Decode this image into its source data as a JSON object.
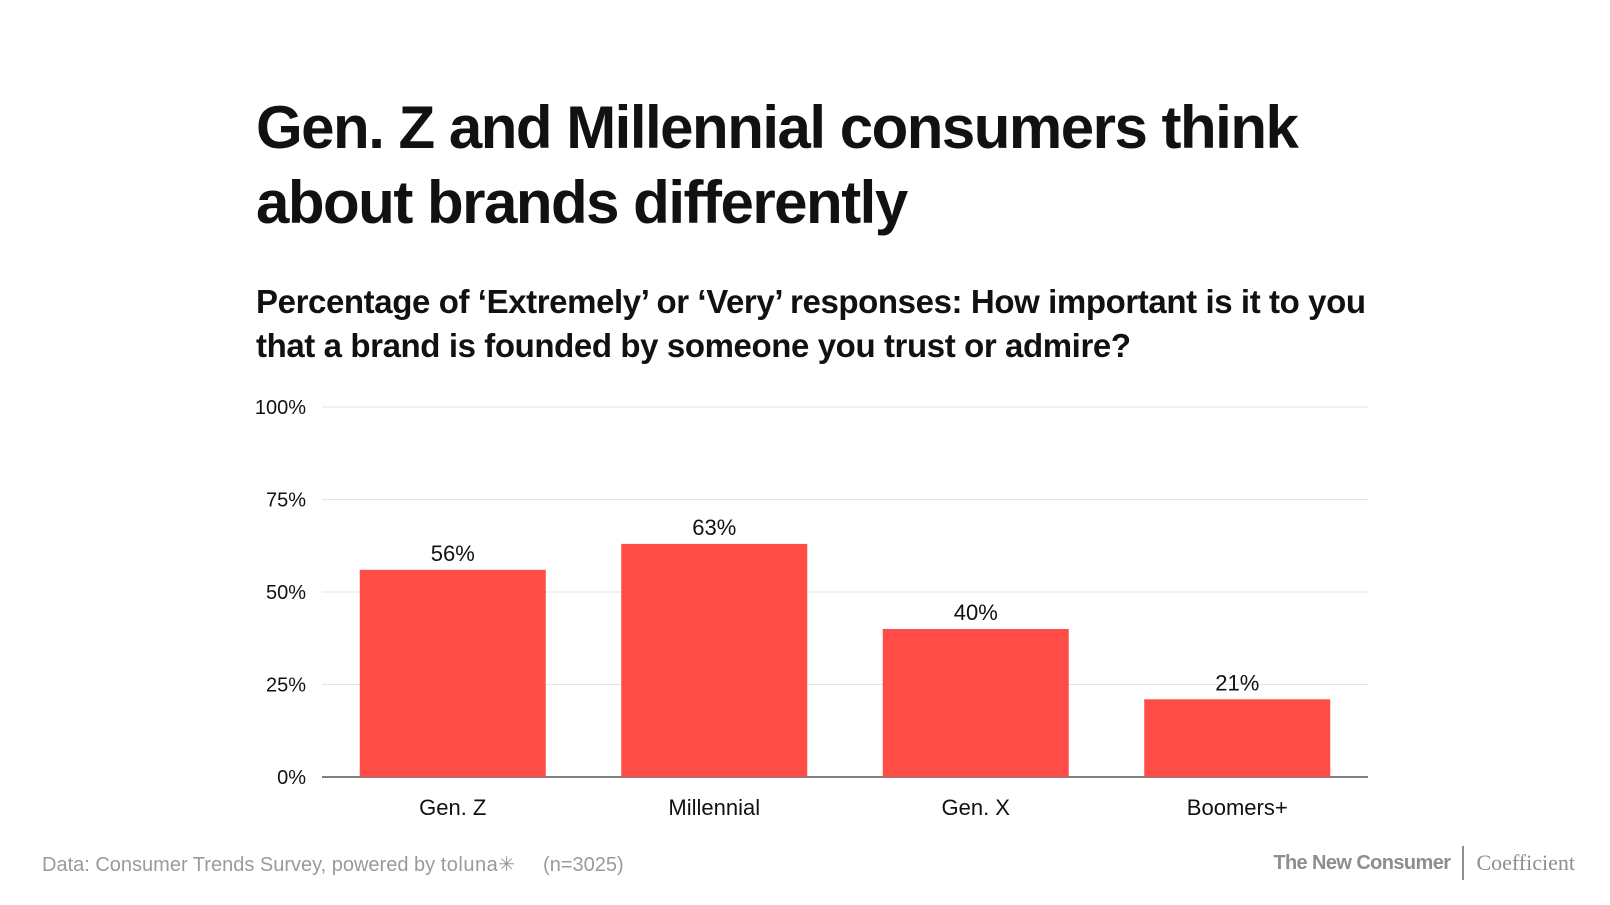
{
  "title": "Gen. Z and Millennial consumers think about brands differently",
  "subtitle": "Percentage of ‘Extremely’ or ‘Very’ responses: How important is it to you that a brand is founded by someone you trust or admire?",
  "footer": {
    "source": "Data: Consumer Trends Survey, powered by",
    "source_brand": "toluna✳",
    "sample": "(n=3025)",
    "brand_primary": "The New Consumer",
    "brand_secondary": "Coefficient"
  },
  "colors": {
    "bar": "#ff4c47",
    "grid": "#e3e3e3",
    "axis": "#555555",
    "text": "#111111",
    "muted": "#9a9a9a"
  },
  "chart_data": {
    "type": "bar",
    "categories": [
      "Gen. Z",
      "Millennial",
      "Gen. X",
      "Boomers+"
    ],
    "values": [
      56,
      63,
      40,
      21
    ],
    "value_labels": [
      "56%",
      "63%",
      "40%",
      "21%"
    ],
    "ylim": [
      0,
      100
    ],
    "yticks": [
      0,
      25,
      50,
      75,
      100
    ],
    "ytick_labels": [
      "0%",
      "25%",
      "50%",
      "75%",
      "100%"
    ],
    "grid": true,
    "legend": "none"
  }
}
